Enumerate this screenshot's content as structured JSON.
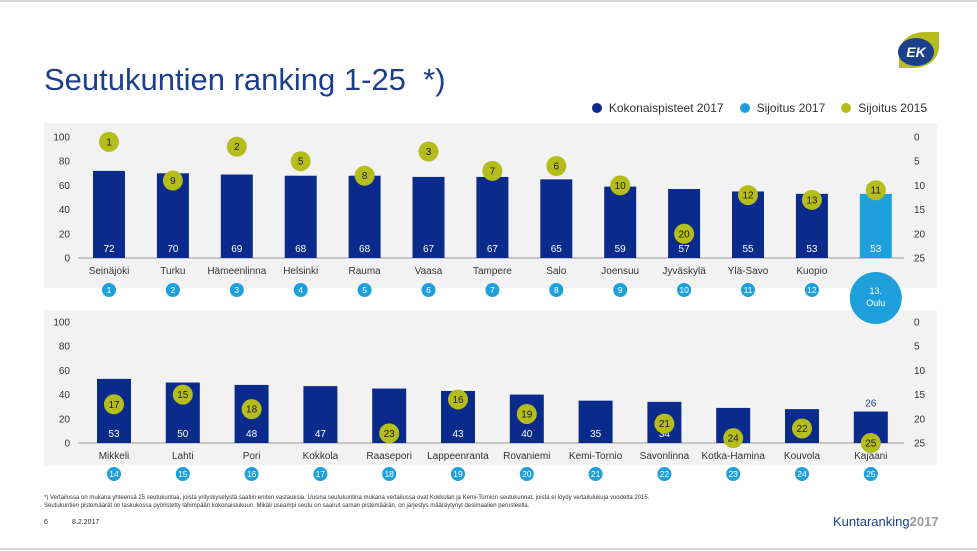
{
  "title": "Seutukuntien ranking 1-25  *)",
  "brand": {
    "logo_text": "EK",
    "footer_name": "Kuntaranking",
    "footer_year": "2017"
  },
  "legend": [
    {
      "label": "Kokonaispisteet 2017",
      "color": "#0a2b8c"
    },
    {
      "label": "Sijoitus 2017",
      "color": "#1ea0dc"
    },
    {
      "label": "Sijoitus 2015",
      "color": "#b5bd1b"
    }
  ],
  "colors": {
    "bar": "#0a2b8c",
    "highlight": "#1ea0dc",
    "rank2015": "#b5bd1b",
    "rank2017": "#1ea0dc"
  },
  "footnote": [
    "*) Vertailussa on mukana yhteensä 25 seutukuntaa, joista yrityskyselystä saatiin eniten vastauksia. Uusina seutukuntina mukana vertailussa ovat Kokkolan ja Kemi-Tornion seutukunnat, joista ei löydy vertailulukuja vuodelta 2015.",
    "Seutukuntien pistemäärät on laskukossa pyöristetty lähimpään kokonaislukuun. Mikäli useampi seutu on saanut saman pistemäärän, on järjestys määräytynyt desimaalien perusteella."
  ],
  "page_number": "6",
  "date": "8.2.2017",
  "chart_data": [
    {
      "type": "bar",
      "categories": [
        "Seinäjoki",
        "Turku",
        "Hämeenlinna",
        "Helsinki",
        "Rauma",
        "Vaasa",
        "Tampere",
        "Salo",
        "Joensuu",
        "Jyväskylä",
        "Ylä-Savo",
        "Kuopio",
        "Oulu"
      ],
      "values": [
        72,
        70,
        69,
        68,
        68,
        67,
        67,
        65,
        59,
        57,
        55,
        53,
        53
      ],
      "value_labels": [
        "72",
        "70",
        "69",
        "68",
        "68",
        "67",
        "67",
        "65",
        "59",
        "57",
        "55",
        "53",
        "53"
      ],
      "rank_2017": [
        "1",
        "2",
        "3",
        "4",
        "5",
        "6",
        "7",
        "8",
        "9",
        "10",
        "11",
        "12",
        "13"
      ],
      "rank_2015": [
        "1",
        "9",
        "2",
        "5",
        "8",
        "3",
        "7",
        "6",
        "10",
        "20",
        "12",
        "13",
        "11"
      ],
      "highlight_index": 12,
      "highlight_label": "13.",
      "ylim": [
        0,
        100
      ],
      "yticks": [
        "0",
        "20",
        "40",
        "60",
        "80",
        "100"
      ],
      "y2lim": [
        25,
        0
      ],
      "y2ticks": [
        "0",
        "5",
        "10",
        "15",
        "20",
        "25"
      ]
    },
    {
      "type": "bar",
      "categories": [
        "Mikkeli",
        "Lahti",
        "Pori",
        "Kokkola",
        "Raasepori",
        "Lappeenranta",
        "Rovaniemi",
        "Kemi-Tornio",
        "Savonlinna",
        "Kotka-Hamina",
        "Kouvola",
        "Kajaani"
      ],
      "values": [
        53,
        50,
        48,
        47,
        45,
        43,
        40,
        35,
        34,
        29,
        28,
        26
      ],
      "value_labels": [
        "53",
        "50",
        "48",
        "47",
        "45",
        "43",
        "40",
        "35",
        "34",
        "29",
        "28",
        "26"
      ],
      "rank_2017": [
        "14",
        "15",
        "16",
        "17",
        "18",
        "19",
        "20",
        "21",
        "22",
        "23",
        "24",
        "25"
      ],
      "rank_2015": [
        "17",
        "15",
        "18",
        null,
        "23",
        "16",
        "19",
        null,
        "21",
        "24",
        "22",
        "25"
      ],
      "ylim": [
        0,
        100
      ],
      "yticks": [
        "0",
        "20",
        "40",
        "60",
        "80",
        "100"
      ],
      "y2lim": [
        25,
        0
      ],
      "y2ticks": [
        "0",
        "5",
        "10",
        "15",
        "20",
        "25"
      ]
    }
  ]
}
